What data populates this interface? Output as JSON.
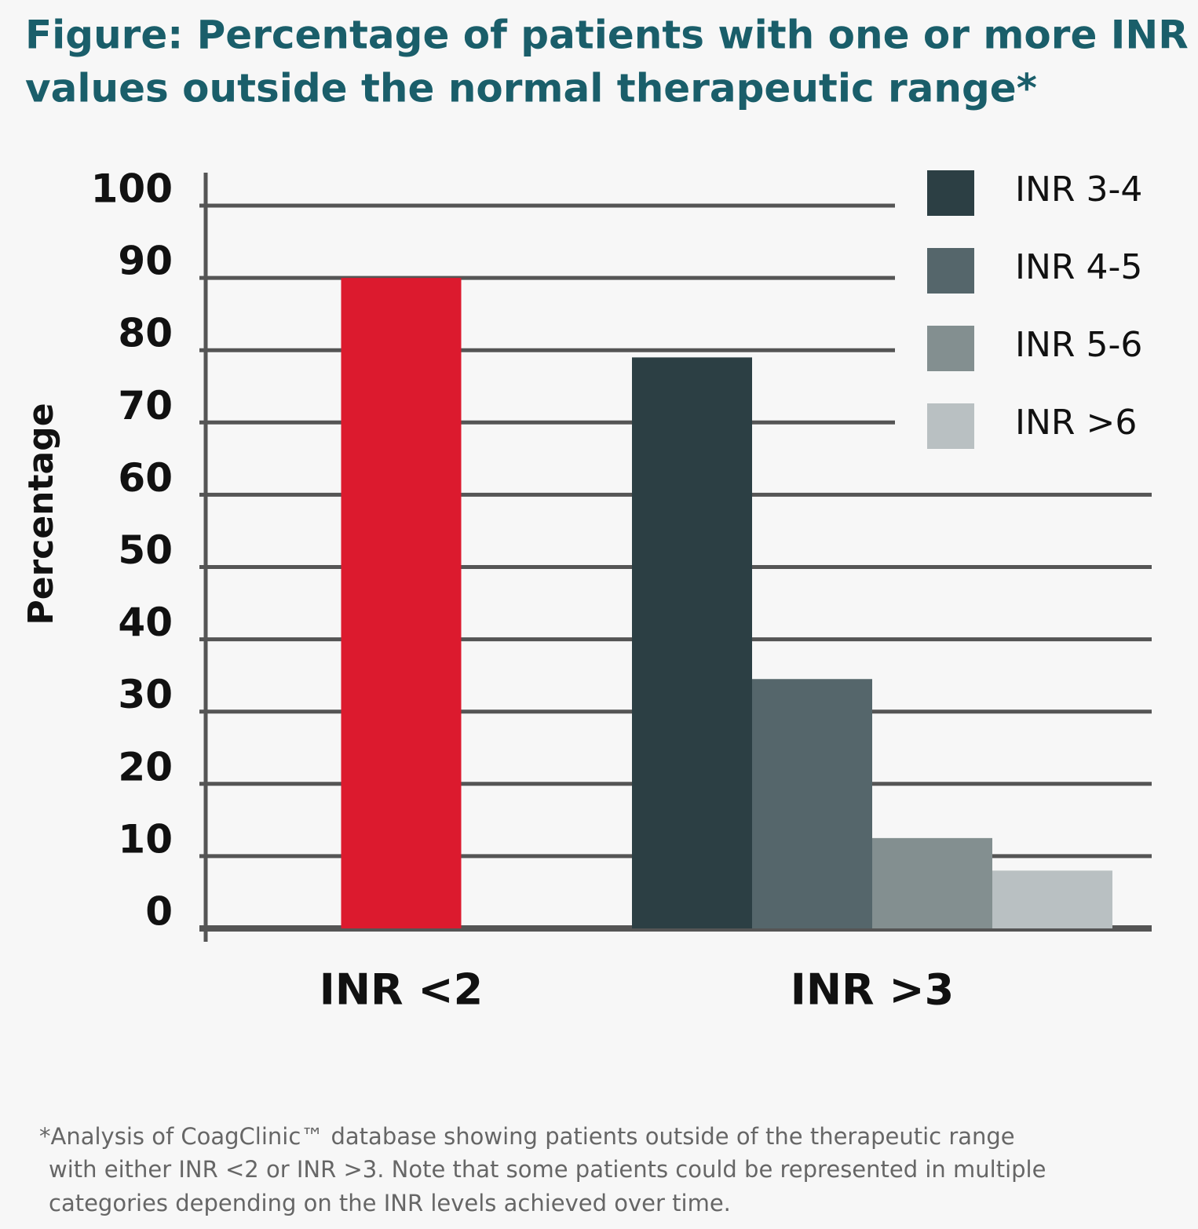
{
  "chart_data": {
    "type": "bar",
    "title": [
      "Figure: Percentage of patients with one or more INR",
      "values outside the normal therapeutic range*"
    ],
    "y_label": "Percentage",
    "categories": [
      "INR <2",
      "INR >3"
    ],
    "values": [
      90,
      null
    ],
    "color": "#dc1a2e",
    "series": [
      {
        "name": "INR 3-4",
        "color": "#2c3f44",
        "values": [
          null,
          79
        ]
      },
      {
        "name": "INR 4-5",
        "color": "#55666b",
        "values": [
          null,
          34.5
        ]
      },
      {
        "name": "INR 5-6",
        "color": "#838f90",
        "values": [
          null,
          12.5
        ]
      },
      {
        "name": "INR >6",
        "color": "#b9c0c2",
        "values": [
          null,
          8
        ]
      }
    ],
    "ylim": [
      0,
      100
    ],
    "yticks": [
      0,
      10,
      20,
      30,
      40,
      50,
      60,
      70,
      80,
      90,
      100
    ],
    "grid": true,
    "legend": "top-right",
    "footnote": [
      "*Analysis of CoagClinic™ database showing patients outside of the therapeutic range",
      "with either INR <2 or INR >3. Note that some patients could be represented in multiple",
      "categories depending on the INR levels achieved over time."
    ]
  }
}
